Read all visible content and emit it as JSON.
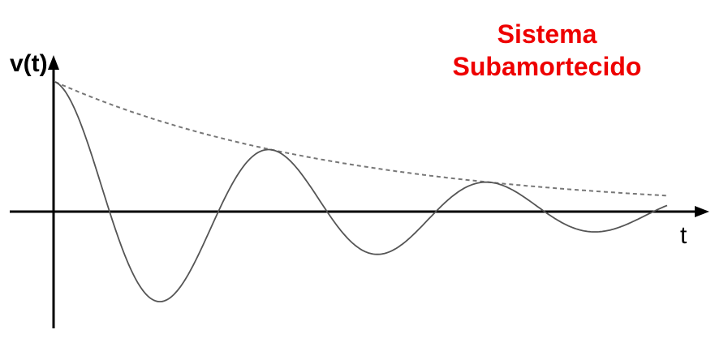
{
  "title": {
    "line1": "Sistema",
    "line2": "Subamortecido"
  },
  "axes": {
    "y_label": "v(t)",
    "x_label": "t"
  },
  "colors": {
    "title": "#ee0000",
    "axes": "#000000",
    "signal": "#555555",
    "envelope": "#777777"
  }
}
